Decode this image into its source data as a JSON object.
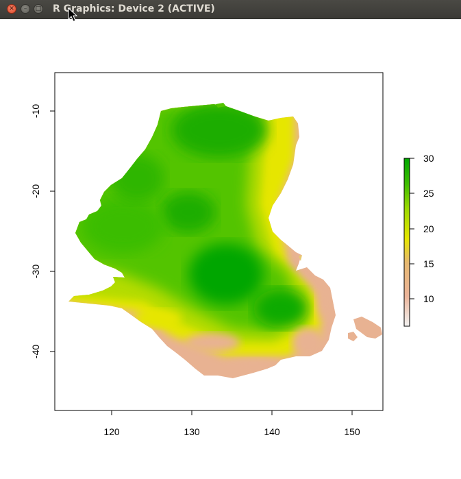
{
  "window": {
    "title": "R Graphics: Device 2 (ACTIVE)",
    "buttons": [
      "close",
      "minimize",
      "maximize"
    ]
  },
  "plot": {
    "x_ticks": [
      "120",
      "130",
      "140",
      "150"
    ],
    "y_ticks": [
      "-10",
      "-20",
      "-30",
      "-40"
    ],
    "legend": {
      "ticks": [
        "30",
        "25",
        "20",
        "15",
        "10"
      ],
      "colors": [
        "#f2f2f2",
        "#e8b292",
        "#e8c96e",
        "#e6e600",
        "#a8dc00",
        "#52c800",
        "#00a600"
      ]
    },
    "colors": {
      "low": "#e8b292",
      "mid": "#e6e600",
      "high": "#00a600"
    }
  },
  "chart_data": {
    "type": "heatmap",
    "title": "",
    "xlabel": "",
    "ylabel": "",
    "xlim": [
      113,
      154
    ],
    "ylim": [
      -47.5,
      -5
    ],
    "x_ticks": [
      120,
      130,
      140,
      150
    ],
    "y_ticks": [
      -10,
      -20,
      -30,
      -40
    ],
    "color_scale": {
      "min": 6,
      "max": 30,
      "ticks": [
        10,
        15,
        20,
        25,
        30
      ],
      "palette": "terrain.colors"
    },
    "grid": false,
    "legend_position": "right"
  }
}
